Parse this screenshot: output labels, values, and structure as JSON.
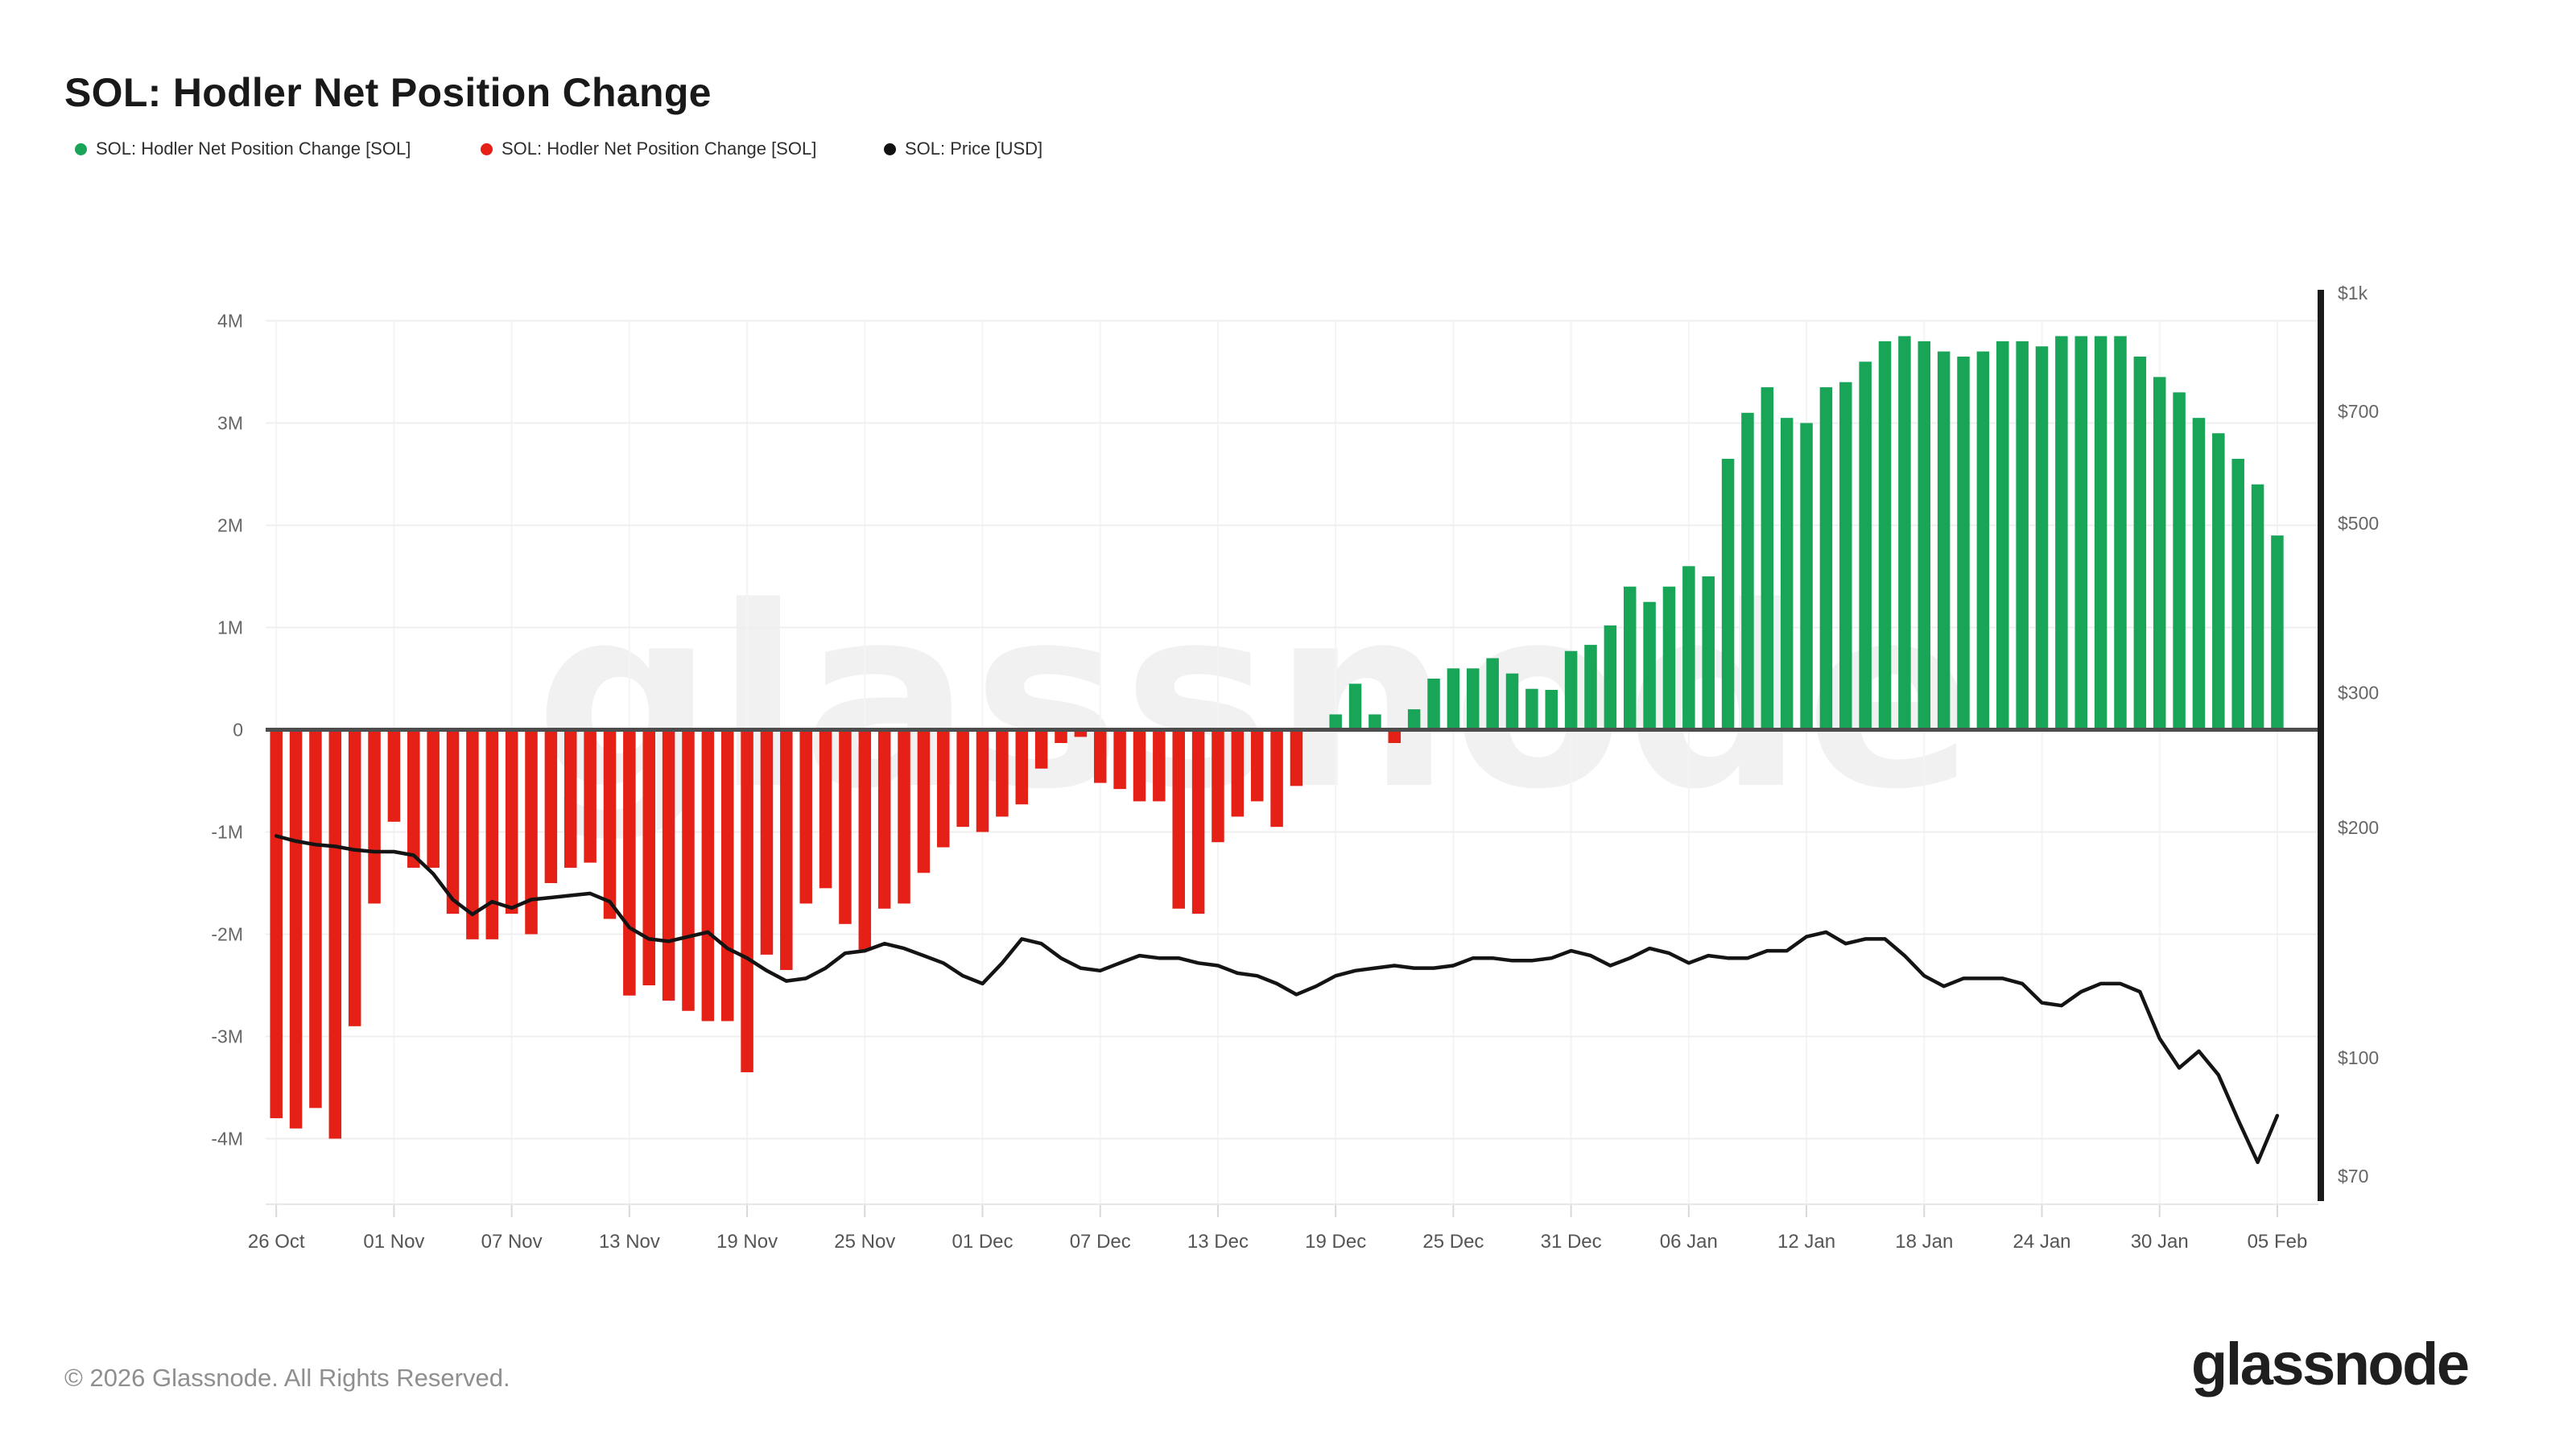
{
  "title": "SOL: Hodler Net Position Change",
  "legend": [
    {
      "label": "SOL: Hodler Net Position Change [SOL]",
      "color": "#18a558"
    },
    {
      "label": "SOL: Hodler Net Position Change [SOL]",
      "color": "#e42017"
    },
    {
      "label": "SOL: Price [USD]",
      "color": "#111111"
    }
  ],
  "watermark": "glassnode",
  "footer": {
    "copyright": "© 2026 Glassnode. All Rights Reserved.",
    "logo": "glassnode"
  },
  "chart_data": {
    "type": "bar",
    "title": "SOL: Hodler Net Position Change",
    "x": [
      "26 Oct",
      "27 Oct",
      "28 Oct",
      "29 Oct",
      "30 Oct",
      "31 Oct",
      "01 Nov",
      "02 Nov",
      "03 Nov",
      "04 Nov",
      "05 Nov",
      "06 Nov",
      "07 Nov",
      "08 Nov",
      "09 Nov",
      "10 Nov",
      "11 Nov",
      "12 Nov",
      "13 Nov",
      "14 Nov",
      "15 Nov",
      "16 Nov",
      "17 Nov",
      "18 Nov",
      "19 Nov",
      "20 Nov",
      "21 Nov",
      "22 Nov",
      "23 Nov",
      "24 Nov",
      "25 Nov",
      "26 Nov",
      "27 Nov",
      "28 Nov",
      "29 Nov",
      "30 Nov",
      "01 Dec",
      "02 Dec",
      "03 Dec",
      "04 Dec",
      "05 Dec",
      "06 Dec",
      "07 Dec",
      "08 Dec",
      "09 Dec",
      "10 Dec",
      "11 Dec",
      "12 Dec",
      "13 Dec",
      "14 Dec",
      "15 Dec",
      "16 Dec",
      "17 Dec",
      "18 Dec",
      "19 Dec",
      "20 Dec",
      "21 Dec",
      "22 Dec",
      "23 Dec",
      "24 Dec",
      "25 Dec",
      "26 Dec",
      "27 Dec",
      "28 Dec",
      "29 Dec",
      "30 Dec",
      "31 Dec",
      "01 Jan",
      "02 Jan",
      "03 Jan",
      "04 Jan",
      "05 Jan",
      "06 Jan",
      "07 Jan",
      "08 Jan",
      "09 Jan",
      "10 Jan",
      "11 Jan",
      "12 Jan",
      "13 Jan",
      "14 Jan",
      "15 Jan",
      "16 Jan",
      "17 Jan",
      "18 Jan",
      "19 Jan",
      "20 Jan",
      "21 Jan",
      "22 Jan",
      "23 Jan",
      "24 Jan",
      "25 Jan",
      "26 Jan",
      "27 Jan",
      "28 Jan",
      "29 Jan",
      "30 Jan",
      "31 Jan",
      "01 Feb",
      "02 Feb",
      "03 Feb",
      "04 Feb",
      "05 Feb"
    ],
    "series": [
      {
        "name": "SOL: Hodler Net Position Change [SOL]",
        "type": "bar",
        "unit": "M SOL",
        "axis": "left",
        "positive_color": "#18a558",
        "negative_color": "#e42017",
        "values": [
          -3.8,
          -3.9,
          -3.7,
          -4.0,
          -2.9,
          -1.7,
          -0.9,
          -1.35,
          -1.35,
          -1.8,
          -2.05,
          -2.05,
          -1.8,
          -2.0,
          -1.5,
          -1.35,
          -1.3,
          -1.85,
          -2.6,
          -2.5,
          -2.65,
          -2.75,
          -2.85,
          -2.85,
          -3.35,
          -2.2,
          -2.35,
          -1.7,
          -1.55,
          -1.9,
          -2.15,
          -1.75,
          -1.7,
          -1.4,
          -1.15,
          -0.95,
          -1.0,
          -0.85,
          -0.73,
          -0.38,
          -0.13,
          -0.07,
          -0.52,
          -0.58,
          -0.7,
          -0.7,
          -1.75,
          -1.8,
          -1.1,
          -0.85,
          -0.7,
          -0.95,
          -0.55,
          0,
          0.15,
          0.45,
          0.15,
          -0.13,
          0.2,
          0.5,
          0.6,
          0.6,
          0.7,
          0.55,
          0.4,
          0.39,
          0.77,
          0.83,
          1.02,
          1.4,
          1.25,
          1.4,
          1.6,
          1.5,
          2.65,
          3.1,
          3.35,
          3.05,
          3.0,
          3.35,
          3.4,
          3.6,
          3.8,
          3.85,
          3.8,
          3.7,
          3.65,
          3.7,
          3.8,
          3.8,
          3.75,
          3.85,
          3.85,
          3.85,
          3.85,
          3.65,
          3.45,
          3.3,
          3.05,
          2.9,
          2.65,
          2.4,
          1.9
        ]
      },
      {
        "name": "SOL: Price [USD]",
        "type": "line",
        "unit": "USD",
        "axis": "right",
        "color": "#141414",
        "values": [
          195,
          192,
          190,
          189,
          187,
          186,
          186,
          184,
          174,
          161,
          154,
          160,
          157,
          161,
          162,
          163,
          164,
          160,
          148,
          143,
          142,
          144,
          146,
          139,
          135,
          130,
          126,
          127,
          131,
          137,
          138,
          141,
          139,
          136,
          133,
          128,
          125,
          133,
          143,
          141,
          135,
          131,
          130,
          133,
          136,
          135,
          135,
          133,
          132,
          129,
          128,
          125,
          121,
          124,
          128,
          130,
          131,
          132,
          131,
          131,
          132,
          135,
          135,
          134,
          134,
          135,
          138,
          136,
          132,
          135,
          139,
          137,
          133,
          136,
          135,
          135,
          138,
          138,
          144,
          146,
          141,
          143,
          143,
          136,
          128,
          124,
          127,
          127,
          127,
          125,
          118,
          117,
          122,
          125,
          125,
          122,
          106,
          97,
          102,
          95,
          83,
          73,
          84
        ]
      }
    ],
    "left_axis": {
      "ticks": [
        {
          "label": "4M",
          "value": 4
        },
        {
          "label": "3M",
          "value": 3
        },
        {
          "label": "2M",
          "value": 2
        },
        {
          "label": "1M",
          "value": 1
        },
        {
          "label": "0",
          "value": 0
        },
        {
          "label": "-1M",
          "value": -1
        },
        {
          "label": "-2M",
          "value": -2
        },
        {
          "label": "-3M",
          "value": -3
        },
        {
          "label": "-4M",
          "value": -4
        }
      ],
      "unit": "SOL",
      "grid": true
    },
    "right_axis": {
      "scale": "log",
      "ticks": [
        {
          "label": "$1k",
          "value": 1000
        },
        {
          "label": "$700",
          "value": 700
        },
        {
          "label": "$500",
          "value": 500
        },
        {
          "label": "$300",
          "value": 300
        },
        {
          "label": "$200",
          "value": 200
        },
        {
          "label": "$100",
          "value": 100
        },
        {
          "label": "$70",
          "value": 70
        }
      ],
      "unit": "USD"
    },
    "x_tick_every": 6,
    "x_tick_labels": [
      "26 Oct",
      "01 Nov",
      "07 Nov",
      "13 Nov",
      "19 Nov",
      "25 Nov",
      "01 Dec",
      "07 Dec",
      "13 Dec",
      "19 Dec",
      "25 Dec",
      "31 Dec",
      "06 Jan",
      "12 Jan",
      "18 Jan",
      "24 Jan",
      "30 Jan",
      "05 Feb"
    ],
    "colors": {
      "positive": "#18a558",
      "negative": "#e42017",
      "price": "#141414",
      "grid": "#efefef",
      "axis_text": "#666666",
      "zero_line": "#4d4d4d",
      "right_axis_bar": "#1a1a1a"
    }
  }
}
